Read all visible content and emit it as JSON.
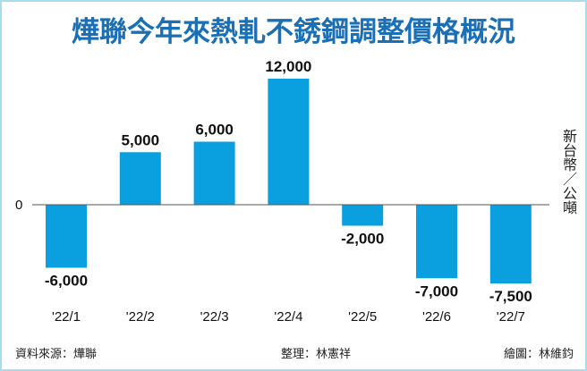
{
  "chart_data": {
    "type": "bar",
    "title": "燁聯今年來熱軋不銹鋼調整價格概況",
    "categories": [
      "'22/1",
      "'22/2",
      "'22/3",
      "'22/4",
      "'22/5",
      "'22/6",
      "'22/7"
    ],
    "values": [
      -6000,
      5000,
      6000,
      12000,
      -2000,
      -7000,
      -7500
    ],
    "data_labels": [
      "-6,000",
      "5,000",
      "6,000",
      "12,000",
      "-2,000",
      "-7,000",
      "-7,500"
    ],
    "ylabel": "新台幣／公噸",
    "zero_label": "0",
    "ylim": [
      -8500,
      12000
    ],
    "grid": false,
    "bar_color": "#0aa0e0",
    "title_color": "#1a6fb5"
  },
  "footer": {
    "source": "資料來源：燁聯",
    "editor": "整理：林憲祥",
    "graphics": "繪圖：林維鈞"
  }
}
